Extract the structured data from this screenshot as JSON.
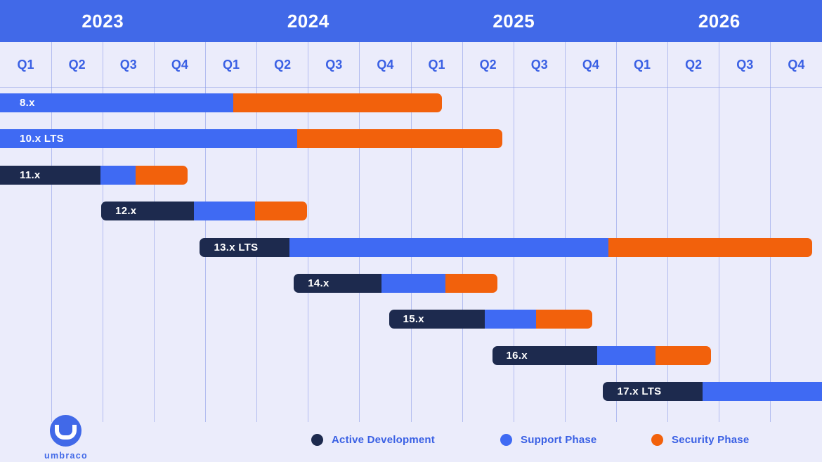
{
  "colors": {
    "page_background": "#ebecfb",
    "header_background": "#4169e8",
    "header_text": "#ffffff",
    "quarter_text": "#3a60e4",
    "gridline": "#b3bdf0",
    "active_development": "#1d2a4e",
    "support_phase": "#3f6af3",
    "security_phase": "#f2610c",
    "bar_label_text": "#ffffff",
    "legend_text": "#3a60e4",
    "logo_blue": "#4169e8"
  },
  "logo": {
    "text": "umbraco"
  },
  "legend": [
    {
      "label": "Active Development",
      "color": "#1d2a4e"
    },
    {
      "label": "Support Phase",
      "color": "#3f6af3"
    },
    {
      "label": "Security Phase",
      "color": "#f2610c"
    }
  ],
  "chart_data": {
    "type": "bar",
    "variant": "gantt-release-roadmap",
    "x_axis": {
      "unit": "quarter",
      "range": [
        0,
        16
      ],
      "years": [
        "2023",
        "2024",
        "2025",
        "2026"
      ],
      "quarter_labels": [
        "Q1",
        "Q2",
        "Q3",
        "Q4",
        "Q1",
        "Q2",
        "Q3",
        "Q4",
        "Q1",
        "Q2",
        "Q3",
        "Q4",
        "Q1",
        "Q2",
        "Q3",
        "Q4"
      ],
      "grid": true
    },
    "phases": [
      "active",
      "support",
      "security"
    ],
    "bars": [
      {
        "label": "8.x",
        "clipped_left": true,
        "clipped_right": false,
        "segments": [
          {
            "phase": "support",
            "start": 0,
            "end": 4.54
          },
          {
            "phase": "security",
            "start": 4.54,
            "end": 8.6
          }
        ]
      },
      {
        "label": "10.x LTS",
        "clipped_left": true,
        "clipped_right": false,
        "segments": [
          {
            "phase": "support",
            "start": 0,
            "end": 5.78
          },
          {
            "phase": "security",
            "start": 5.78,
            "end": 9.78
          }
        ]
      },
      {
        "label": "11.x",
        "clipped_left": true,
        "clipped_right": false,
        "segments": [
          {
            "phase": "active",
            "start": 0,
            "end": 1.95
          },
          {
            "phase": "support",
            "start": 1.95,
            "end": 2.64
          },
          {
            "phase": "security",
            "start": 2.64,
            "end": 3.65
          }
        ]
      },
      {
        "label": "12.x",
        "clipped_left": false,
        "clipped_right": false,
        "segments": [
          {
            "phase": "active",
            "start": 1.97,
            "end": 3.78
          },
          {
            "phase": "support",
            "start": 3.78,
            "end": 4.96
          },
          {
            "phase": "security",
            "start": 4.96,
            "end": 5.97
          }
        ]
      },
      {
        "label": "13.x LTS",
        "clipped_left": false,
        "clipped_right": false,
        "segments": [
          {
            "phase": "active",
            "start": 3.89,
            "end": 5.63
          },
          {
            "phase": "support",
            "start": 5.63,
            "end": 11.84
          },
          {
            "phase": "security",
            "start": 11.84,
            "end": 15.81
          }
        ]
      },
      {
        "label": "14.x",
        "clipped_left": false,
        "clipped_right": false,
        "segments": [
          {
            "phase": "active",
            "start": 5.72,
            "end": 7.42
          },
          {
            "phase": "support",
            "start": 7.42,
            "end": 8.67
          },
          {
            "phase": "security",
            "start": 8.67,
            "end": 9.68
          }
        ]
      },
      {
        "label": "15.x",
        "clipped_left": false,
        "clipped_right": false,
        "segments": [
          {
            "phase": "active",
            "start": 7.57,
            "end": 9.44
          },
          {
            "phase": "support",
            "start": 9.44,
            "end": 10.44
          },
          {
            "phase": "security",
            "start": 10.44,
            "end": 11.53
          }
        ]
      },
      {
        "label": "16.x",
        "clipped_left": false,
        "clipped_right": false,
        "segments": [
          {
            "phase": "active",
            "start": 9.58,
            "end": 11.62
          },
          {
            "phase": "support",
            "start": 11.62,
            "end": 12.76
          },
          {
            "phase": "security",
            "start": 12.76,
            "end": 13.84
          }
        ]
      },
      {
        "label": "17.x LTS",
        "clipped_left": false,
        "clipped_right": true,
        "segments": [
          {
            "phase": "active",
            "start": 11.74,
            "end": 13.68
          },
          {
            "phase": "support",
            "start": 13.68,
            "end": 16.0
          }
        ]
      }
    ]
  }
}
